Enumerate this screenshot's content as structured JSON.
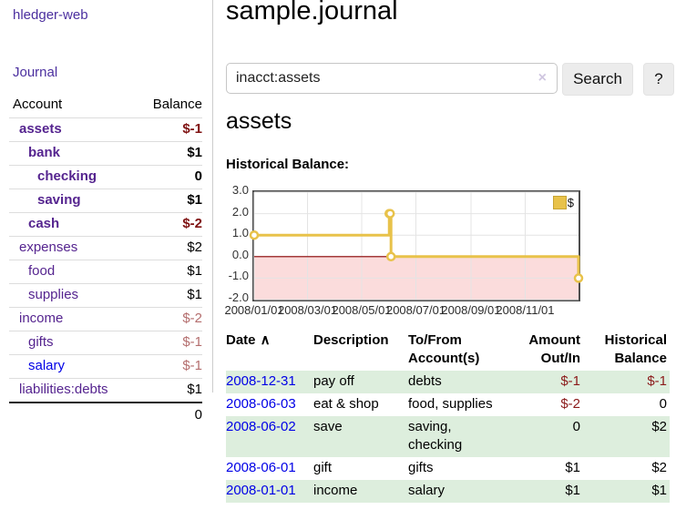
{
  "colors": {
    "accent_purple": "#55248f",
    "nav_purple": "#4b2f9f",
    "link_blue": "#0000e6",
    "negative_strong": "#7f1212",
    "negative_soft": "#b46e6e",
    "negative_table": "#8b1a1a",
    "row_green": "#ddeedd",
    "chart_gold": "#e8c24a",
    "chart_negative_fill": "#fbdcdc",
    "chart_zero_line": "#8b0000"
  },
  "app": {
    "brand": "hledger-web",
    "nav_journal": "Journal"
  },
  "sidebar": {
    "accounts_header": {
      "account": "Account",
      "balance": "Balance"
    },
    "accounts": [
      {
        "name": "assets",
        "balance": "$-1",
        "indent": 1,
        "bold": true,
        "bal_class": "neg-strong"
      },
      {
        "name": "bank",
        "balance": "$1",
        "indent": 2,
        "bold": true,
        "bal_class": ""
      },
      {
        "name": "checking",
        "balance": "0",
        "indent": 3,
        "bold": true,
        "bal_class": ""
      },
      {
        "name": "saving",
        "balance": "$1",
        "indent": 3,
        "bold": true,
        "bal_class": ""
      },
      {
        "name": "cash",
        "balance": "$-2",
        "indent": 2,
        "bold": true,
        "bal_class": "neg-strong"
      },
      {
        "name": "expenses",
        "balance": "$2",
        "indent": 1,
        "bold": false,
        "bal_class": ""
      },
      {
        "name": "food",
        "balance": "$1",
        "indent": 2,
        "bold": false,
        "bal_class": ""
      },
      {
        "name": "supplies",
        "balance": "$1",
        "indent": 2,
        "bold": false,
        "bal_class": ""
      },
      {
        "name": "income",
        "balance": "$-2",
        "indent": 1,
        "bold": false,
        "bal_class": "neg-soft"
      },
      {
        "name": "gifts",
        "balance": "$-1",
        "indent": 2,
        "bold": false,
        "bal_class": "neg-soft"
      },
      {
        "name": "salary",
        "balance": "$-1",
        "indent": 2,
        "bold": false,
        "bal_class": "neg-soft",
        "blue": true
      },
      {
        "name": "liabilities:debts",
        "balance": "$1",
        "indent": 1,
        "bold": false,
        "bal_class": ""
      }
    ],
    "total": "0"
  },
  "header": {
    "title": "sample.journal"
  },
  "search": {
    "value": "inacct:assets",
    "clear_icon": "×",
    "button": "Search",
    "help_button": "?"
  },
  "account_page": {
    "heading": "assets",
    "chart_label": "Historical Balance:"
  },
  "chart_data": {
    "type": "line",
    "step": true,
    "title": "Historical Balance",
    "x_type": "date",
    "x_range": [
      "2008-01-01",
      "2008-12-31"
    ],
    "ylim": [
      -2.0,
      3.0
    ],
    "yticks": [
      "3.0",
      "2.0",
      "1.0",
      "0.0",
      "-1.0",
      "-2.0"
    ],
    "xticks": [
      "2008/01/01",
      "2008/03/01",
      "2008/05/01",
      "2008/07/01",
      "2008/09/01",
      "2008/11/01"
    ],
    "series": [
      {
        "name": "$",
        "color": "#e8c24a",
        "points": [
          [
            "2008-01-01",
            1.0
          ],
          [
            "2008-06-01",
            2.0
          ],
          [
            "2008-06-02",
            2.0
          ],
          [
            "2008-06-03",
            0.0
          ],
          [
            "2008-12-31",
            -1.0
          ]
        ]
      }
    ],
    "legend": {
      "label": "$",
      "position": "top-right"
    },
    "grid": true,
    "negative_region_color": "#fbdcdc",
    "zero_line_color": "#8b0000"
  },
  "register": {
    "sort_icon": "∧",
    "columns": [
      {
        "key": "date",
        "label": "Date",
        "align": "left",
        "sortable": true
      },
      {
        "key": "description",
        "label": "Description",
        "align": "left",
        "sortable": false
      },
      {
        "key": "accounts",
        "label": "To/From Account(s)",
        "align": "left",
        "sortable": false
      },
      {
        "key": "amount",
        "label": "Amount Out/In",
        "align": "right",
        "sortable": false
      },
      {
        "key": "balance",
        "label": "Historical Balance",
        "align": "right",
        "sortable": false
      }
    ],
    "rows": [
      {
        "date": "2008-12-31",
        "description": "pay off",
        "accounts": "debts",
        "amount": "$-1",
        "balance": "$-1",
        "amount_negative": true,
        "balance_negative": true
      },
      {
        "date": "2008-06-03",
        "description": "eat & shop",
        "accounts": "food, supplies",
        "amount": "$-2",
        "balance": "0",
        "amount_negative": true,
        "balance_negative": false
      },
      {
        "date": "2008-06-02",
        "description": "save",
        "accounts": "saving, checking",
        "amount": "0",
        "balance": "$2",
        "amount_negative": false,
        "balance_negative": false
      },
      {
        "date": "2008-06-01",
        "description": "gift",
        "accounts": "gifts",
        "amount": "$1",
        "balance": "$2",
        "amount_negative": false,
        "balance_negative": false
      },
      {
        "date": "2008-01-01",
        "description": "income",
        "accounts": "salary",
        "amount": "$1",
        "balance": "$1",
        "amount_negative": false,
        "balance_negative": false
      }
    ]
  }
}
